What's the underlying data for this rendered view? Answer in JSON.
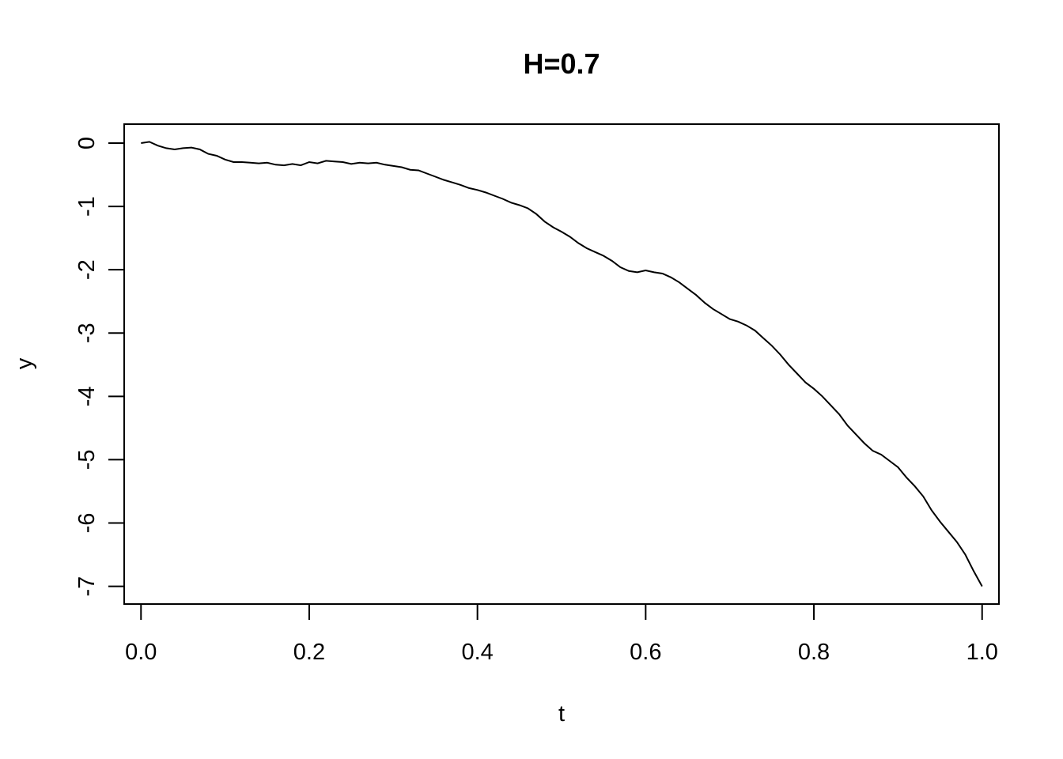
{
  "chart_data": {
    "type": "line",
    "title": "H=0.7",
    "xlabel": "t",
    "ylabel": "y",
    "xlim": [
      -0.02,
      1.02
    ],
    "ylim": [
      -7.28,
      0.3
    ],
    "x_ticks": [
      0.0,
      0.2,
      0.4,
      0.6,
      0.8,
      1.0
    ],
    "x_tick_labels": [
      "0.0",
      "0.2",
      "0.4",
      "0.6",
      "0.8",
      "1.0"
    ],
    "y_ticks": [
      0,
      -1,
      -2,
      -3,
      -4,
      -5,
      -6,
      -7
    ],
    "y_tick_labels": [
      "0",
      "-1",
      "-2",
      "-3",
      "-4",
      "-5",
      "-6",
      "-7"
    ],
    "grid": false,
    "series": [
      {
        "color": "#000000",
        "x": [
          0.0,
          0.01,
          0.02,
          0.03,
          0.04,
          0.05,
          0.06,
          0.07,
          0.08,
          0.09,
          0.1,
          0.11,
          0.12,
          0.13,
          0.14,
          0.15,
          0.16,
          0.17,
          0.18,
          0.19,
          0.2,
          0.21,
          0.22,
          0.23,
          0.24,
          0.25,
          0.26,
          0.27,
          0.28,
          0.29,
          0.3,
          0.31,
          0.32,
          0.33,
          0.34,
          0.35,
          0.36,
          0.37,
          0.38,
          0.39,
          0.4,
          0.41,
          0.42,
          0.43,
          0.44,
          0.45,
          0.46,
          0.47,
          0.48,
          0.49,
          0.5,
          0.51,
          0.52,
          0.53,
          0.54,
          0.55,
          0.56,
          0.57,
          0.58,
          0.59,
          0.6,
          0.61,
          0.62,
          0.63,
          0.64,
          0.65,
          0.66,
          0.67,
          0.68,
          0.69,
          0.7,
          0.71,
          0.72,
          0.73,
          0.74,
          0.75,
          0.76,
          0.77,
          0.78,
          0.79,
          0.8,
          0.81,
          0.82,
          0.83,
          0.84,
          0.85,
          0.86,
          0.87,
          0.88,
          0.89,
          0.9,
          0.91,
          0.92,
          0.93,
          0.94,
          0.95,
          0.96,
          0.97,
          0.98,
          0.99,
          1.0
        ],
        "y": [
          0.0,
          0.02,
          -0.04,
          -0.08,
          -0.1,
          -0.08,
          -0.07,
          -0.1,
          -0.17,
          -0.2,
          -0.26,
          -0.3,
          -0.3,
          -0.31,
          -0.32,
          -0.31,
          -0.34,
          -0.35,
          -0.33,
          -0.35,
          -0.3,
          -0.32,
          -0.28,
          -0.29,
          -0.3,
          -0.33,
          -0.31,
          -0.32,
          -0.31,
          -0.34,
          -0.36,
          -0.38,
          -0.42,
          -0.43,
          -0.48,
          -0.53,
          -0.58,
          -0.62,
          -0.66,
          -0.71,
          -0.74,
          -0.78,
          -0.83,
          -0.88,
          -0.94,
          -0.98,
          -1.03,
          -1.12,
          -1.24,
          -1.33,
          -1.4,
          -1.48,
          -1.58,
          -1.66,
          -1.72,
          -1.78,
          -1.86,
          -1.96,
          -2.02,
          -2.04,
          -2.01,
          -2.04,
          -2.06,
          -2.12,
          -2.2,
          -2.3,
          -2.4,
          -2.52,
          -2.62,
          -2.7,
          -2.78,
          -2.82,
          -2.88,
          -2.96,
          -3.08,
          -3.2,
          -3.34,
          -3.5,
          -3.64,
          -3.78,
          -3.88,
          -4.0,
          -4.14,
          -4.28,
          -4.46,
          -4.6,
          -4.74,
          -4.86,
          -4.92,
          -5.02,
          -5.12,
          -5.28,
          -5.42,
          -5.58,
          -5.8,
          -5.98,
          -6.14,
          -6.3,
          -6.5,
          -6.76,
          -7.0
        ]
      }
    ]
  }
}
